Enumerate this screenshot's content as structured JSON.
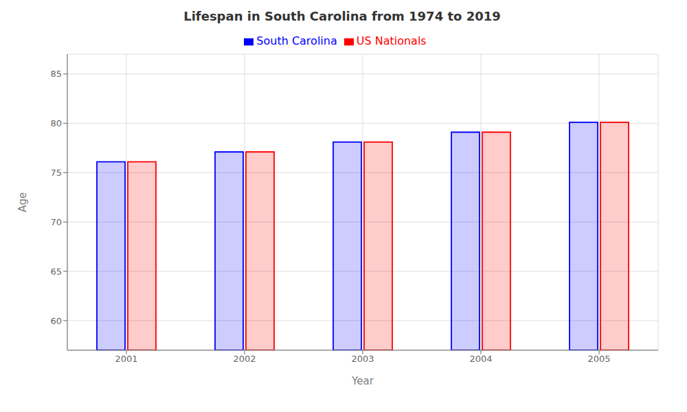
{
  "chart_data": {
    "type": "bar",
    "title": "Lifespan in South Carolina from 1974 to 2019",
    "xlabel": "Year",
    "ylabel": "Age",
    "categories": [
      "2001",
      "2002",
      "2003",
      "2004",
      "2005"
    ],
    "series": [
      {
        "name": "South Carolina",
        "color": "#0000ff",
        "values": [
          76.1,
          77.1,
          78.1,
          79.1,
          80.1
        ]
      },
      {
        "name": "US Nationals",
        "color": "#ff0000",
        "values": [
          76.1,
          77.1,
          78.1,
          79.1,
          80.1
        ]
      }
    ],
    "ylim": [
      57,
      87
    ],
    "yticks": [
      60,
      65,
      70,
      75,
      80,
      85
    ],
    "grid": true,
    "legend": "top"
  }
}
